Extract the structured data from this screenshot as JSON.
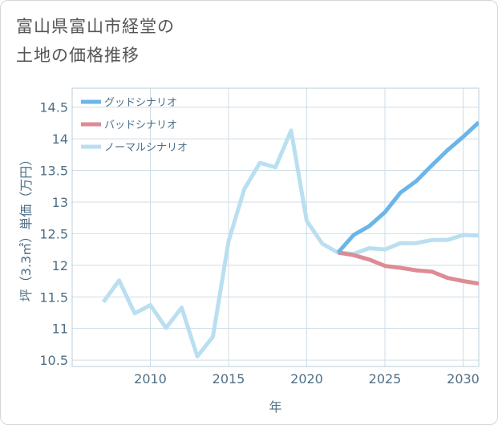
{
  "title_line1": "富山県富山市経堂の",
  "title_line2": "土地の価格推移",
  "chart_data": {
    "type": "line",
    "xlabel": "年",
    "ylabel": "坪（3.3㎡）単価（万円）",
    "xlim": [
      2005,
      2031
    ],
    "ylim": [
      10.4,
      14.8
    ],
    "x_ticks": [
      2010,
      2015,
      2020,
      2025,
      2030
    ],
    "y_ticks": [
      10.5,
      11,
      11.5,
      12,
      12.5,
      13,
      13.5,
      14,
      14.5
    ],
    "x_tick_labels": [
      "2010",
      "2015",
      "2020",
      "2025",
      "2030"
    ],
    "y_tick_labels": [
      "10.5",
      "11",
      "11.5",
      "12",
      "12.5",
      "13",
      "13.5",
      "14",
      "14.5"
    ],
    "grid": true,
    "legend_position": "top-left",
    "series": [
      {
        "name": "グッドシナリオ",
        "color": "#6bb5e8",
        "x": [
          2022,
          2023,
          2024,
          2025,
          2026,
          2027,
          2028,
          2029,
          2030,
          2031
        ],
        "y": [
          12.2,
          12.48,
          12.62,
          12.84,
          13.15,
          13.33,
          13.58,
          13.82,
          14.03,
          14.26
        ]
      },
      {
        "name": "バッドシナリオ",
        "color": "#dd8b94",
        "x": [
          2022,
          2023,
          2024,
          2025,
          2026,
          2027,
          2028,
          2029,
          2030,
          2031
        ],
        "y": [
          12.2,
          12.16,
          12.09,
          11.99,
          11.96,
          11.92,
          11.9,
          11.8,
          11.75,
          11.71
        ]
      },
      {
        "name": "ノーマルシナリオ",
        "color": "#b9dff0",
        "x": [
          2007,
          2008,
          2009,
          2010,
          2011,
          2012,
          2013,
          2014,
          2015,
          2016,
          2017,
          2018,
          2019,
          2020,
          2021,
          2022,
          2023,
          2024,
          2025,
          2026,
          2027,
          2028,
          2029,
          2030,
          2031
        ],
        "y": [
          11.42,
          11.76,
          11.24,
          11.37,
          11.01,
          11.33,
          10.56,
          10.87,
          12.38,
          13.2,
          13.62,
          13.55,
          14.13,
          12.7,
          12.34,
          12.2,
          12.18,
          12.27,
          12.25,
          12.35,
          12.35,
          12.4,
          12.4,
          12.48,
          12.47
        ]
      }
    ]
  }
}
